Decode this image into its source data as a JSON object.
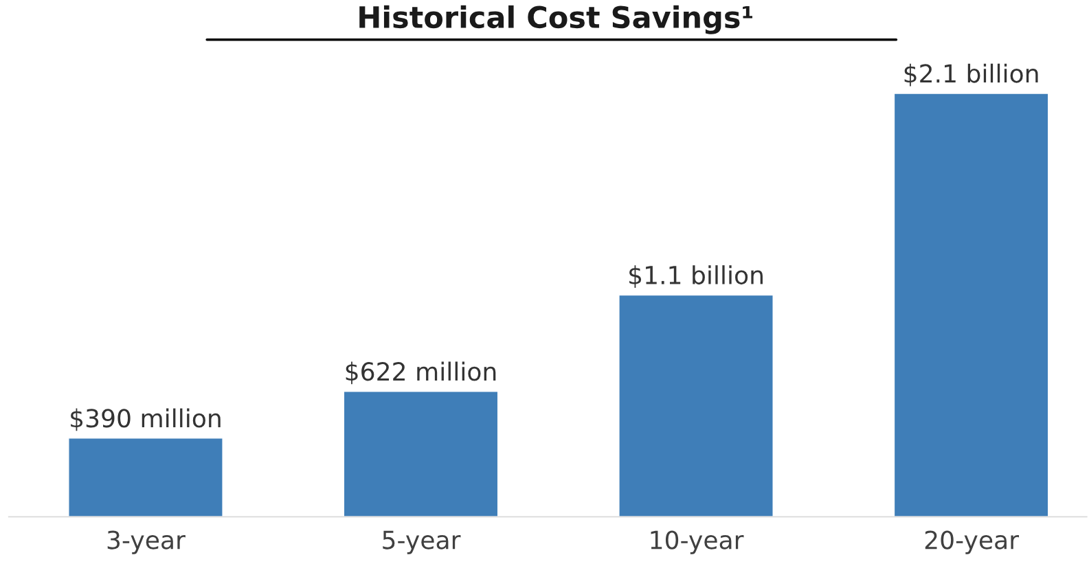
{
  "chart_data": {
    "type": "bar",
    "title": "Historical Cost Savings¹",
    "categories": [
      "3-year",
      "5-year",
      "10-year",
      "20-year"
    ],
    "values": [
      390000000,
      622000000,
      1100000000,
      2100000000
    ],
    "value_labels": [
      "$390 million",
      "$622 million",
      "$1.1 billion",
      "$2.1 billion"
    ],
    "color": "#3f7eb8",
    "grid": false,
    "legend": false
  }
}
